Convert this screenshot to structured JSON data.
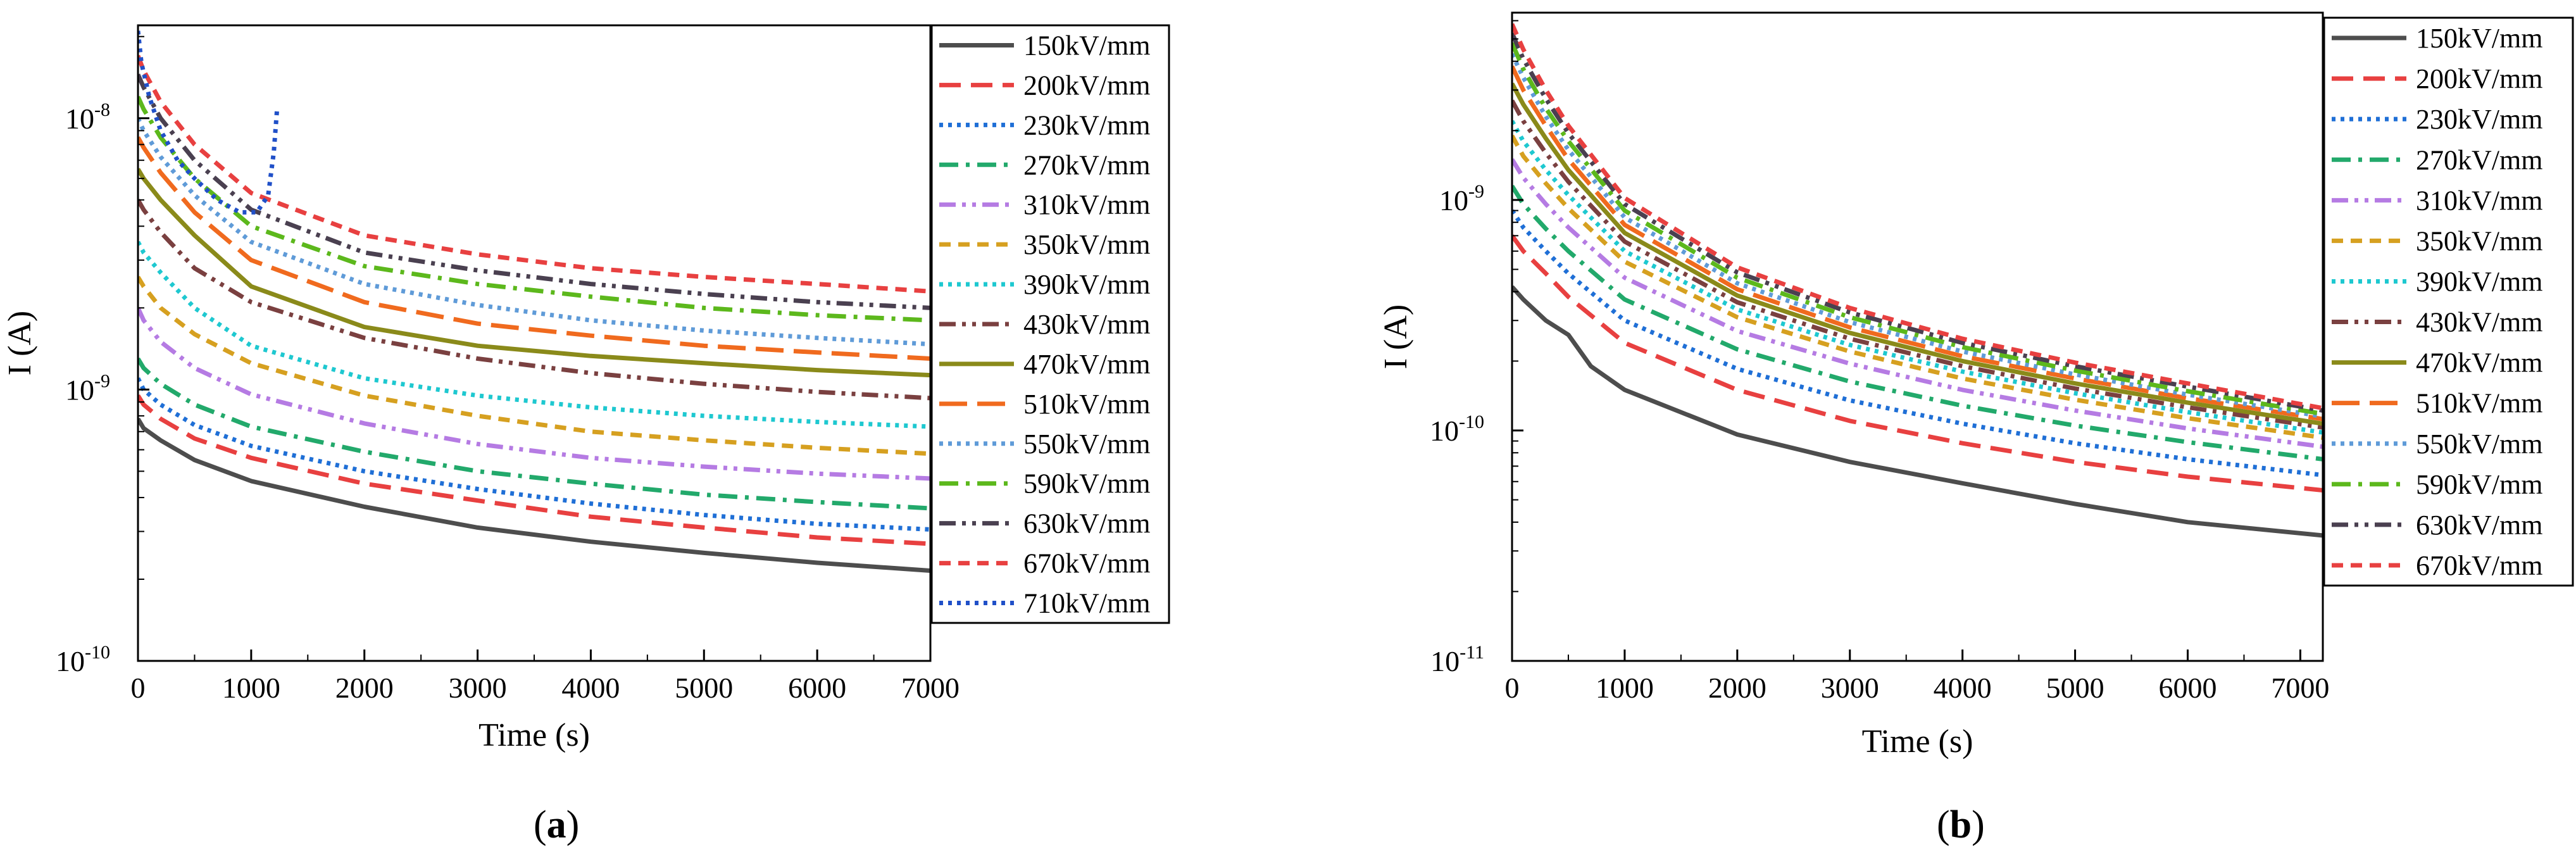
{
  "chart_data": [
    {
      "panel": "a",
      "type": "line",
      "xlabel": "Time (s)",
      "ylabel": "I (A)",
      "xlim": [
        0,
        7000
      ],
      "ylim": [
        1e-10,
        2.2e-08
      ],
      "yscale": "log",
      "xticks": [
        0,
        1000,
        2000,
        3000,
        4000,
        5000,
        6000,
        7000
      ],
      "yticks": [
        {
          "value": 1e-10,
          "base": "10",
          "exp": "-10"
        },
        {
          "value": 1e-09,
          "base": "10",
          "exp": "-9"
        },
        {
          "value": 1e-08,
          "base": "10",
          "exp": "-8"
        }
      ],
      "legend_position": "right",
      "series": [
        {
          "name": "150kV/mm",
          "color": "#4d4d4d",
          "dash": "solid",
          "x": [
            0,
            50,
            200,
            500,
            1000,
            2000,
            3000,
            4000,
            5000,
            6000,
            7000
          ],
          "y": [
            7.8e-10,
            7.2e-10,
            6.5e-10,
            5.5e-10,
            4.6e-10,
            3.7e-10,
            3.1e-10,
            2.75e-10,
            2.5e-10,
            2.3e-10,
            2.15e-10
          ]
        },
        {
          "name": "200kV/mm",
          "color": "#e84040",
          "dash": "dash",
          "x": [
            0,
            50,
            200,
            500,
            1000,
            2000,
            3000,
            4000,
            5000,
            6000,
            7000
          ],
          "y": [
            9.5e-10,
            8.8e-10,
            7.8e-10,
            6.6e-10,
            5.6e-10,
            4.5e-10,
            3.9e-10,
            3.4e-10,
            3.1e-10,
            2.85e-10,
            2.7e-10
          ]
        },
        {
          "name": "230kV/mm",
          "color": "#1f6fd6",
          "dash": "dot",
          "x": [
            0,
            50,
            200,
            500,
            1000,
            2000,
            3000,
            4000,
            5000,
            6000,
            7000
          ],
          "y": [
            1.1e-09,
            1e-09,
            8.8e-10,
            7.4e-10,
            6.2e-10,
            5e-10,
            4.3e-10,
            3.8e-10,
            3.45e-10,
            3.2e-10,
            3.05e-10
          ]
        },
        {
          "name": "270kV/mm",
          "color": "#22a96b",
          "dash": "dashdot",
          "x": [
            0,
            50,
            200,
            500,
            1000,
            2000,
            3000,
            4000,
            5000,
            6000,
            7000
          ],
          "y": [
            1.3e-09,
            1.2e-09,
            1.05e-09,
            8.8e-10,
            7.3e-10,
            5.9e-10,
            5e-10,
            4.5e-10,
            4.1e-10,
            3.85e-10,
            3.65e-10
          ]
        },
        {
          "name": "310kV/mm",
          "color": "#b57be3",
          "dash": "dashdotdot",
          "x": [
            0,
            50,
            200,
            500,
            1000,
            2000,
            3000,
            4000,
            5000,
            6000,
            7000
          ],
          "y": [
            2e-09,
            1.8e-09,
            1.5e-09,
            1.2e-09,
            9.6e-10,
            7.5e-10,
            6.3e-10,
            5.6e-10,
            5.2e-10,
            4.9e-10,
            4.7e-10
          ]
        },
        {
          "name": "350kV/mm",
          "color": "#d6a020",
          "dash": "shortdash",
          "x": [
            0,
            50,
            200,
            500,
            1000,
            2000,
            3000,
            4000,
            5000,
            6000,
            7000
          ],
          "y": [
            2.6e-09,
            2.4e-09,
            2e-09,
            1.6e-09,
            1.25e-09,
            9.5e-10,
            8e-10,
            7e-10,
            6.5e-10,
            6.1e-10,
            5.8e-10
          ]
        },
        {
          "name": "390kV/mm",
          "color": "#1ec8d0",
          "dash": "dot",
          "x": [
            0,
            50,
            200,
            500,
            1000,
            2000,
            3000,
            4000,
            5000,
            6000,
            7000
          ],
          "y": [
            3.5e-09,
            3.2e-09,
            2.7e-09,
            2e-09,
            1.45e-09,
            1.1e-09,
            9.5e-10,
            8.6e-10,
            8e-10,
            7.6e-10,
            7.3e-10
          ]
        },
        {
          "name": "430kV/mm",
          "color": "#7a4040",
          "dash": "dashdotdot",
          "x": [
            0,
            50,
            200,
            500,
            1000,
            2000,
            3000,
            4000,
            5000,
            6000,
            7000
          ],
          "y": [
            5e-09,
            4.6e-09,
            3.8e-09,
            2.8e-09,
            2.1e-09,
            1.55e-09,
            1.3e-09,
            1.15e-09,
            1.05e-09,
            9.8e-10,
            9.3e-10
          ]
        },
        {
          "name": "470kV/mm",
          "color": "#8a8a1a",
          "dash": "solid",
          "x": [
            0,
            50,
            200,
            500,
            1000,
            2000,
            3000,
            4000,
            5000,
            6000,
            7000
          ],
          "y": [
            6.5e-09,
            6e-09,
            5e-09,
            3.7e-09,
            2.4e-09,
            1.7e-09,
            1.45e-09,
            1.33e-09,
            1.25e-09,
            1.18e-09,
            1.13e-09
          ]
        },
        {
          "name": "510kV/mm",
          "color": "#f06a1e",
          "dash": "longdash",
          "x": [
            0,
            50,
            200,
            500,
            1000,
            2000,
            3000,
            4000,
            5000,
            6000,
            7000
          ],
          "y": [
            8.5e-09,
            7.8e-09,
            6.3e-09,
            4.5e-09,
            3e-09,
            2.1e-09,
            1.75e-09,
            1.58e-09,
            1.45e-09,
            1.37e-09,
            1.3e-09
          ]
        },
        {
          "name": "550kV/mm",
          "color": "#5f9bd8",
          "dash": "dot",
          "x": [
            0,
            50,
            200,
            500,
            1000,
            2000,
            3000,
            4000,
            5000,
            6000,
            7000
          ],
          "y": [
            1e-08,
            9e-09,
            7.2e-09,
            5.2e-09,
            3.5e-09,
            2.45e-09,
            2.05e-09,
            1.8e-09,
            1.65e-09,
            1.55e-09,
            1.47e-09
          ]
        },
        {
          "name": "590kV/mm",
          "color": "#5cb81c",
          "dash": "dashdot",
          "x": [
            0,
            50,
            200,
            500,
            1000,
            2000,
            3000,
            4000,
            5000,
            6000,
            7000
          ],
          "y": [
            1.2e-08,
            1.08e-08,
            8.5e-09,
            6e-09,
            4e-09,
            2.85e-09,
            2.45e-09,
            2.2e-09,
            2e-09,
            1.88e-09,
            1.8e-09
          ]
        },
        {
          "name": "630kV/mm",
          "color": "#4a4050",
          "dash": "dashdotdot",
          "x": [
            0,
            50,
            200,
            500,
            1000,
            2000,
            3000,
            4000,
            5000,
            6000,
            7000
          ],
          "y": [
            1.45e-08,
            1.3e-08,
            1e-08,
            7e-09,
            4.6e-09,
            3.2e-09,
            2.75e-09,
            2.45e-09,
            2.25e-09,
            2.1e-09,
            2e-09
          ]
        },
        {
          "name": "670kV/mm",
          "color": "#e84040",
          "dash": "shortdash",
          "x": [
            0,
            50,
            200,
            500,
            1000,
            2000,
            3000,
            4000,
            5000,
            6000,
            7000
          ],
          "y": [
            1.7e-08,
            1.5e-08,
            1.15e-08,
            8e-09,
            5.3e-09,
            3.7e-09,
            3.15e-09,
            2.8e-09,
            2.6e-09,
            2.45e-09,
            2.3e-09
          ]
        },
        {
          "name": "710kV/mm",
          "color": "#2050c8",
          "dash": "dot",
          "x": [
            0,
            30,
            100,
            200,
            350,
            500,
            700,
            900,
            1050,
            1150,
            1200,
            1230
          ],
          "y": [
            2.1e-08,
            1.6e-08,
            1.2e-08,
            9e-09,
            7e-09,
            6e-09,
            5e-09,
            4.5e-09,
            4.5e-09,
            5.2e-09,
            7.5e-09,
            1.1e-08
          ]
        }
      ]
    },
    {
      "panel": "b",
      "type": "line",
      "xlabel": "Time (s)",
      "ylabel": "I (A)",
      "xlim": [
        0,
        7200
      ],
      "ylim": [
        1e-11,
        6.5e-09
      ],
      "yscale": "log",
      "xticks": [
        0,
        1000,
        2000,
        3000,
        4000,
        5000,
        6000,
        7000
      ],
      "yticks": [
        {
          "value": 1e-11,
          "base": "10",
          "exp": "-11"
        },
        {
          "value": 1e-10,
          "base": "10",
          "exp": "-10"
        },
        {
          "value": 1e-09,
          "base": "10",
          "exp": "-9"
        }
      ],
      "legend_position": "right",
      "series": [
        {
          "name": "150kV/mm",
          "color": "#4d4d4d",
          "dash": "solid",
          "x": [
            0,
            100,
            300,
            500,
            700,
            1000,
            2000,
            3000,
            4000,
            5000,
            6000,
            7200
          ],
          "y": [
            4.2e-10,
            3.7e-10,
            3e-10,
            2.6e-10,
            1.9e-10,
            1.5e-10,
            9.6e-11,
            7.3e-11,
            5.9e-11,
            4.8e-11,
            4e-11,
            3.5e-11
          ]
        },
        {
          "name": "200kV/mm",
          "color": "#e84040",
          "dash": "dash",
          "x": [
            0,
            100,
            300,
            500,
            1000,
            2000,
            3000,
            4000,
            5000,
            6000,
            7200
          ],
          "y": [
            7e-10,
            6e-10,
            4.8e-10,
            3.8e-10,
            2.4e-10,
            1.5e-10,
            1.1e-10,
            8.8e-11,
            7.3e-11,
            6.3e-11,
            5.5e-11
          ]
        },
        {
          "name": "230kV/mm",
          "color": "#1f6fd6",
          "dash": "dot",
          "x": [
            0,
            100,
            300,
            500,
            1000,
            2000,
            3000,
            4000,
            5000,
            6000,
            7200
          ],
          "y": [
            9e-10,
            7.6e-10,
            6e-10,
            4.8e-10,
            3e-10,
            1.85e-10,
            1.35e-10,
            1.07e-10,
            8.8e-11,
            7.5e-11,
            6.4e-11
          ]
        },
        {
          "name": "270kV/mm",
          "color": "#22a96b",
          "dash": "dashdot",
          "x": [
            0,
            100,
            300,
            500,
            1000,
            2000,
            3000,
            4000,
            5000,
            6000,
            7200
          ],
          "y": [
            1.15e-09,
            9.6e-10,
            7.5e-10,
            6e-10,
            3.7e-10,
            2.25e-10,
            1.63e-10,
            1.28e-10,
            1.05e-10,
            8.9e-11,
            7.5e-11
          ]
        },
        {
          "name": "310kV/mm",
          "color": "#b57be3",
          "dash": "dashdotdot",
          "x": [
            0,
            100,
            300,
            500,
            1000,
            2000,
            3000,
            4000,
            5000,
            6000,
            7200
          ],
          "y": [
            1.5e-09,
            1.25e-09,
            9.6e-10,
            7.6e-10,
            4.6e-10,
            2.7e-10,
            1.95e-10,
            1.5e-10,
            1.22e-10,
            1.02e-10,
            8.5e-11
          ]
        },
        {
          "name": "350kV/mm",
          "color": "#d6a020",
          "dash": "shortdash",
          "x": [
            0,
            100,
            300,
            500,
            1000,
            2000,
            3000,
            4000,
            5000,
            6000,
            7200
          ],
          "y": [
            1.9e-09,
            1.55e-09,
            1.18e-09,
            9.2e-10,
            5.4e-10,
            3.1e-10,
            2.2e-10,
            1.68e-10,
            1.36e-10,
            1.13e-10,
            9.3e-11
          ]
        },
        {
          "name": "390kV/mm",
          "color": "#1ec8d0",
          "dash": "dot",
          "x": [
            0,
            100,
            300,
            500,
            1000,
            2000,
            3000,
            4000,
            5000,
            6000,
            7200
          ],
          "y": [
            2.2e-09,
            1.8e-09,
            1.35e-09,
            1.05e-09,
            6e-10,
            3.35e-10,
            2.35e-10,
            1.8e-10,
            1.45e-10,
            1.2e-10,
            9.8e-11
          ]
        },
        {
          "name": "430kV/mm",
          "color": "#7a4040",
          "dash": "dashdotdot",
          "x": [
            0,
            100,
            300,
            500,
            1000,
            2000,
            3000,
            4000,
            5000,
            6000,
            7200
          ],
          "y": [
            2.7e-09,
            2.2e-09,
            1.6e-09,
            1.2e-09,
            6.6e-10,
            3.6e-10,
            2.5e-10,
            1.9e-10,
            1.52e-10,
            1.26e-10,
            1.03e-10
          ]
        },
        {
          "name": "470kV/mm",
          "color": "#8a8a1a",
          "dash": "solid",
          "x": [
            0,
            100,
            300,
            500,
            1000,
            2000,
            3000,
            4000,
            5000,
            6000,
            7200
          ],
          "y": [
            3.2e-09,
            2.6e-09,
            1.85e-09,
            1.35e-09,
            7.2e-10,
            3.85e-10,
            2.65e-10,
            2e-10,
            1.6e-10,
            1.32e-10,
            1.07e-10
          ]
        },
        {
          "name": "510kV/mm",
          "color": "#f06a1e",
          "dash": "longdash",
          "x": [
            0,
            100,
            300,
            500,
            1000,
            2000,
            3000,
            4000,
            5000,
            6000,
            7200
          ],
          "y": [
            3.8e-09,
            3e-09,
            2.1e-09,
            1.5e-09,
            7.8e-10,
            4.1e-10,
            2.8e-10,
            2.1e-10,
            1.68e-10,
            1.38e-10,
            1.12e-10
          ]
        },
        {
          "name": "550kV/mm",
          "color": "#5f9bd8",
          "dash": "dot",
          "x": [
            0,
            100,
            300,
            500,
            1000,
            2000,
            3000,
            4000,
            5000,
            6000,
            7200
          ],
          "y": [
            4.3e-09,
            3.4e-09,
            2.3e-09,
            1.65e-09,
            8.4e-10,
            4.35e-10,
            2.95e-10,
            2.2e-10,
            1.75e-10,
            1.43e-10,
            1.15e-10
          ]
        },
        {
          "name": "590kV/mm",
          "color": "#5cb81c",
          "dash": "dashdot",
          "x": [
            0,
            100,
            300,
            500,
            1000,
            2000,
            3000,
            4000,
            5000,
            6000,
            7200
          ],
          "y": [
            4.8e-09,
            3.7e-09,
            2.5e-09,
            1.8e-09,
            9e-10,
            4.6e-10,
            3.1e-10,
            2.3e-10,
            1.82e-10,
            1.48e-10,
            1.18e-10
          ]
        },
        {
          "name": "630kV/mm",
          "color": "#4a4050",
          "dash": "dashdotdot",
          "x": [
            0,
            100,
            300,
            500,
            1000,
            2000,
            3000,
            4000,
            5000,
            6000,
            7200
          ],
          "y": [
            5.3e-09,
            4.1e-09,
            2.75e-09,
            1.95e-09,
            9.6e-10,
            4.85e-10,
            3.25e-10,
            2.4e-10,
            1.9e-10,
            1.55e-10,
            1.22e-10
          ]
        },
        {
          "name": "670kV/mm",
          "color": "#e84040",
          "dash": "shortdash",
          "x": [
            0,
            100,
            300,
            500,
            1000,
            2000,
            3000,
            4000,
            5000,
            6000,
            7200
          ],
          "y": [
            5.8e-09,
            4.5e-09,
            3e-09,
            2.1e-09,
            1.02e-09,
            5.1e-10,
            3.4e-10,
            2.5e-10,
            1.97e-10,
            1.6e-10,
            1.25e-10
          ]
        }
      ]
    }
  ],
  "panel_labels": [
    {
      "open": "(",
      "letter": "a",
      "close": ")"
    },
    {
      "open": "(",
      "letter": "b",
      "close": ")"
    }
  ]
}
